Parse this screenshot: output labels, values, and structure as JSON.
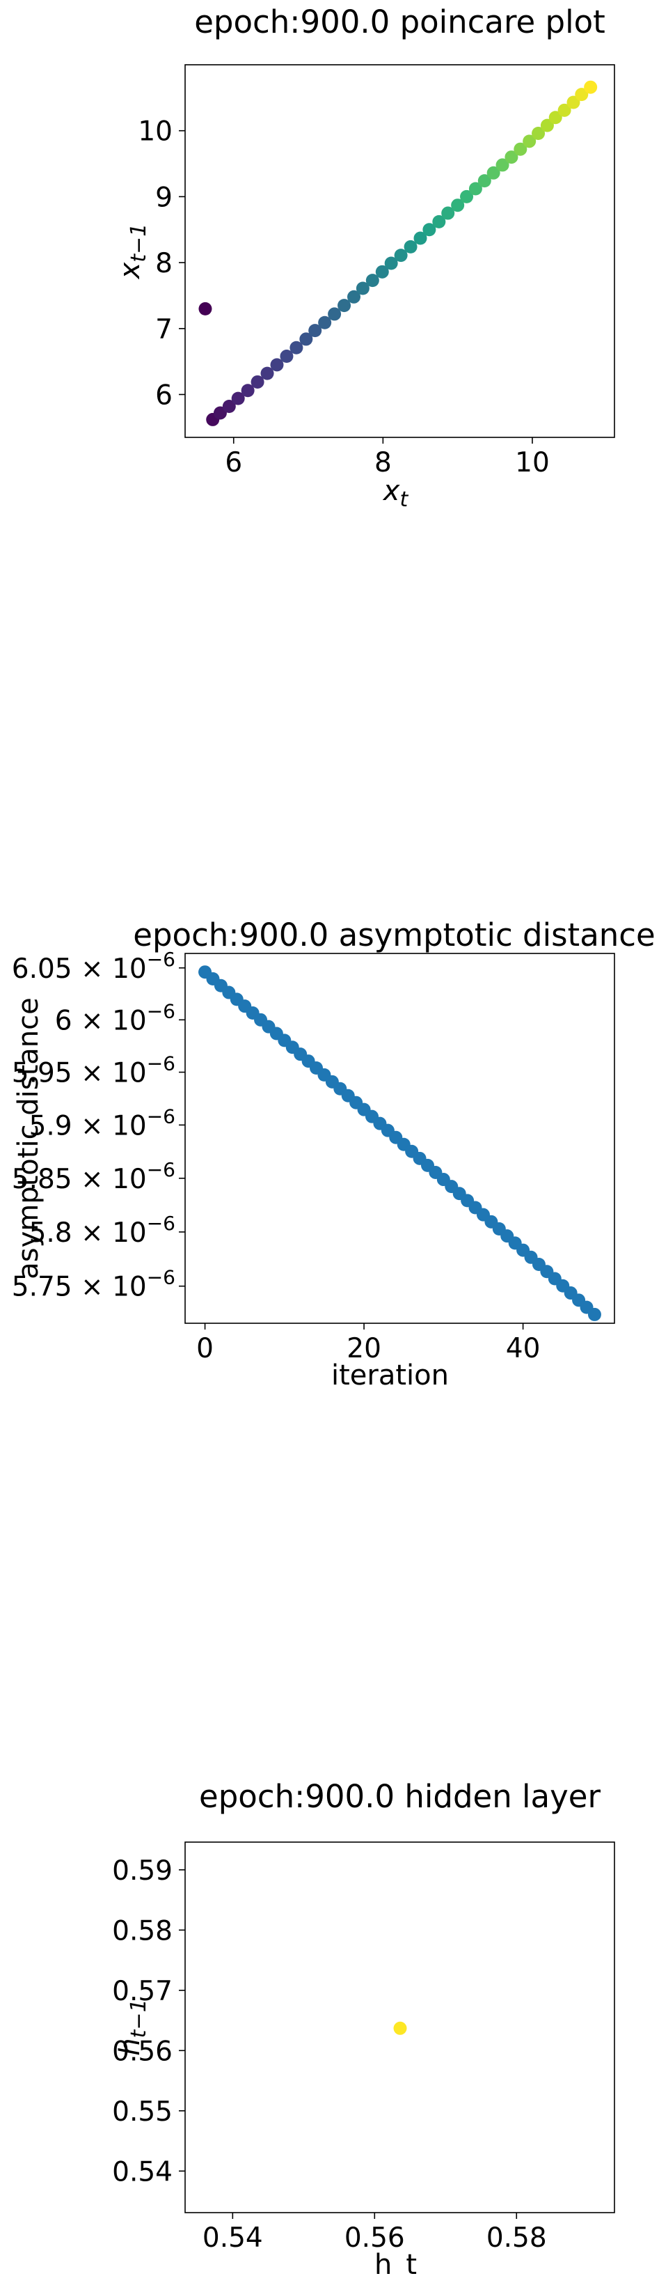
{
  "chart_data": [
    {
      "type": "scatter",
      "title": "epoch:900.0 poincare plot",
      "xlabel": "x_t",
      "ylabel": "x_{t−1}",
      "xlim": [
        5.35,
        11.1
      ],
      "ylim": [
        5.35,
        11.0
      ],
      "x_ticks": [
        6,
        8,
        10
      ],
      "y_ticks": [
        6,
        7,
        8,
        9,
        10
      ],
      "colormap": "viridis",
      "grid": false,
      "x": [
        5.62,
        5.72,
        5.82,
        5.94,
        6.06,
        6.19,
        6.32,
        6.45,
        6.58,
        6.71,
        6.84,
        6.97,
        7.09,
        7.22,
        7.35,
        7.48,
        7.61,
        7.73,
        7.86,
        7.99,
        8.11,
        8.24,
        8.37,
        8.5,
        8.62,
        8.75,
        8.87,
        9.0,
        9.12,
        9.24,
        9.36,
        9.48,
        9.6,
        9.72,
        9.84,
        9.96,
        10.08,
        10.2,
        10.31,
        10.43,
        10.55,
        10.66,
        10.78
      ],
      "y": [
        7.3,
        5.62,
        5.72,
        5.82,
        5.94,
        6.06,
        6.19,
        6.32,
        6.45,
        6.58,
        6.71,
        6.84,
        6.97,
        7.09,
        7.22,
        7.35,
        7.48,
        7.61,
        7.73,
        7.86,
        7.99,
        8.11,
        8.24,
        8.37,
        8.5,
        8.62,
        8.75,
        8.87,
        9.0,
        9.12,
        9.24,
        9.36,
        9.48,
        9.6,
        9.72,
        9.84,
        9.96,
        10.08,
        10.2,
        10.31,
        10.43,
        10.55,
        10.66
      ]
    },
    {
      "type": "scatter",
      "title": "epoch:900.0 asymptotic distance",
      "xlabel": "iteration",
      "ylabel": "asymptotic distance",
      "xlim": [
        -2.5,
        51.5
      ],
      "ylim": [
        5.716,
        6.064
      ],
      "x_ticks": [
        0,
        20,
        40
      ],
      "y_ticks": [
        {
          "value": 6.05,
          "mantissa": "6.05",
          "base": "10",
          "exponent": "−6"
        },
        {
          "value": 6.0,
          "mantissa": "6",
          "base": "10",
          "exponent": "−6"
        },
        {
          "value": 5.95,
          "mantissa": "5.95",
          "base": "10",
          "exponent": "−6"
        },
        {
          "value": 5.9,
          "mantissa": "5.9",
          "base": "10",
          "exponent": "−6"
        },
        {
          "value": 5.85,
          "mantissa": "5.85",
          "base": "10",
          "exponent": "−6"
        },
        {
          "value": 5.8,
          "mantissa": "5.8",
          "base": "10",
          "exponent": "−6"
        },
        {
          "value": 5.75,
          "mantissa": "5.75",
          "base": "10",
          "exponent": "−6"
        }
      ],
      "y_unit_scale": "1e-6",
      "y_scale": "log",
      "color": "#1f77b4",
      "grid": false,
      "y_start": 6.046,
      "y_end": 5.724,
      "n_points": 50
    },
    {
      "type": "scatter",
      "title": "epoch:900.0 hidden layer",
      "xlabel": "h_t",
      "ylabel": "h_{t−1}",
      "xlim": [
        0.5333,
        0.5938
      ],
      "ylim": [
        0.5331,
        0.5946
      ],
      "x_ticks": [
        0.54,
        0.56,
        0.58
      ],
      "y_ticks": [
        0.54,
        0.55,
        0.56,
        0.57,
        0.58,
        0.59
      ],
      "color": "#fde725",
      "grid": false,
      "x": [
        0.5636
      ],
      "y": [
        0.5637
      ]
    }
  ]
}
